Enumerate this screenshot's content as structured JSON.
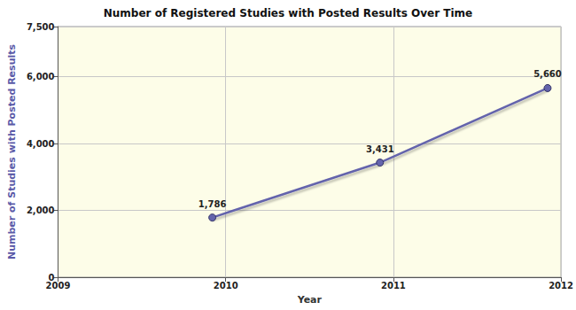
{
  "chart_data": {
    "type": "line",
    "title": "Number of Registered Studies with Posted Results Over Time",
    "x_label": "Year",
    "y_label": "Number of Studies with Posted Results",
    "x": [
      2009.92,
      2010.92,
      2011.92
    ],
    "values": [
      1786,
      3431,
      5660
    ],
    "value_labels": [
      "1,786",
      "3,431",
      "5,660"
    ],
    "color": "#6464ac",
    "marker": "circle",
    "xlim": [
      2009,
      2012
    ],
    "xticks": [
      2009,
      2010,
      2011,
      2012
    ],
    "ylim": [
      0,
      7500
    ],
    "yticks": [
      0,
      {
        "value": 2000,
        "label": "2,000"
      },
      {
        "value": 4000,
        "label": "4,000"
      },
      {
        "value": 6000,
        "label": "6,000"
      },
      {
        "value": 7500,
        "label": "7,500"
      }
    ],
    "grid": true,
    "data_labels": true
  }
}
